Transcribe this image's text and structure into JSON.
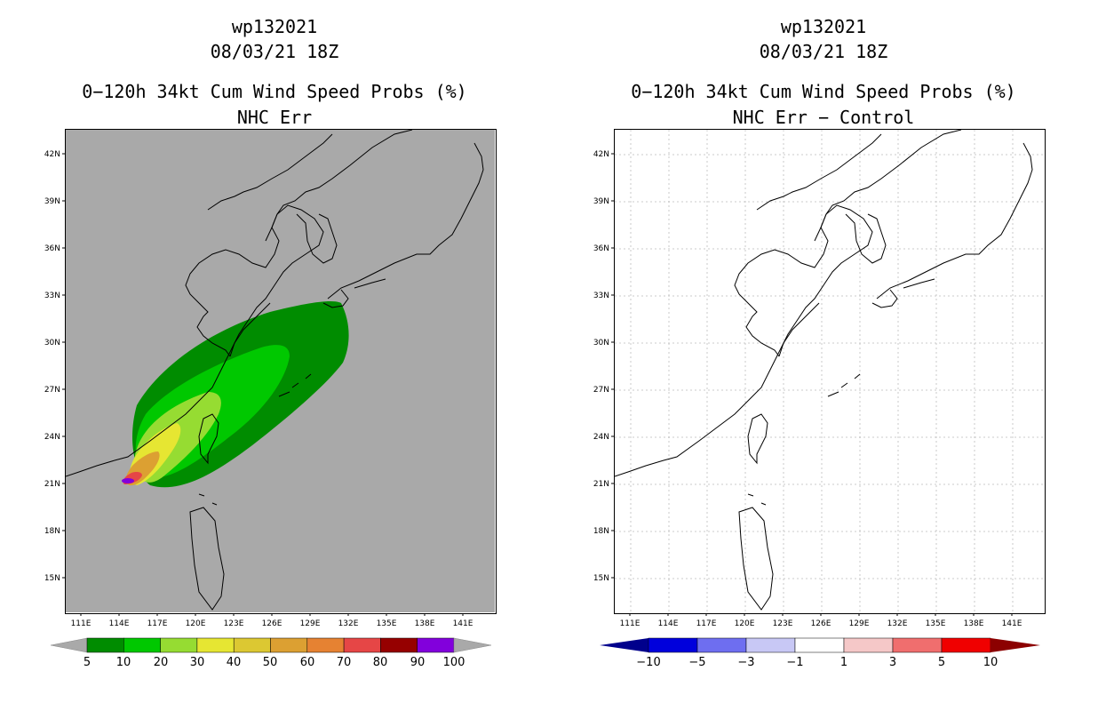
{
  "panels": [
    {
      "id": "left",
      "storm_id": "wp132021",
      "datetime": "08/03/21 18Z",
      "title": "0−120h 34kt Cum Wind Speed Probs (%)",
      "subtitle": "NHC Err",
      "background": "#a9a9a9",
      "lon_ticks": [
        "111E",
        "114E",
        "117E",
        "120E",
        "123E",
        "126E",
        "129E",
        "132E",
        "135E",
        "138E",
        "141E"
      ],
      "lat_ticks": [
        "42N",
        "39N",
        "36N",
        "33N",
        "30N",
        "27N",
        "24N",
        "21N",
        "18N",
        "15N"
      ],
      "colorbar": {
        "labels": [
          "5",
          "10",
          "20",
          "30",
          "40",
          "50",
          "60",
          "70",
          "80",
          "90",
          "100"
        ],
        "colors": [
          "#008c00",
          "#00c800",
          "#96dc32",
          "#e6e632",
          "#dcc832",
          "#dca032",
          "#e68232",
          "#e64646",
          "#960000",
          "#8200dc"
        ],
        "end_color": "#a9a9a9"
      }
    },
    {
      "id": "right",
      "storm_id": "wp132021",
      "datetime": "08/03/21 18Z",
      "title": "0−120h 34kt Cum Wind Speed Probs (%)",
      "subtitle": "NHC Err − Control",
      "background": "#ffffff",
      "lon_ticks": [
        "111E",
        "114E",
        "117E",
        "120E",
        "123E",
        "126E",
        "129E",
        "132E",
        "135E",
        "138E",
        "141E"
      ],
      "lat_ticks": [
        "42N",
        "39N",
        "36N",
        "33N",
        "30N",
        "27N",
        "24N",
        "21N",
        "18N",
        "15N"
      ],
      "colorbar": {
        "labels": [
          "−10",
          "−5",
          "−3",
          "−1",
          "1",
          "3",
          "5",
          "10"
        ],
        "colors": [
          "#0000dc",
          "#6e6ef0",
          "#c8c8f5",
          "#ffffff",
          "#f5c8c8",
          "#f06e6e",
          "#f00000"
        ],
        "left_end_color": "#00008c",
        "right_end_color": "#8c0000"
      }
    }
  ]
}
